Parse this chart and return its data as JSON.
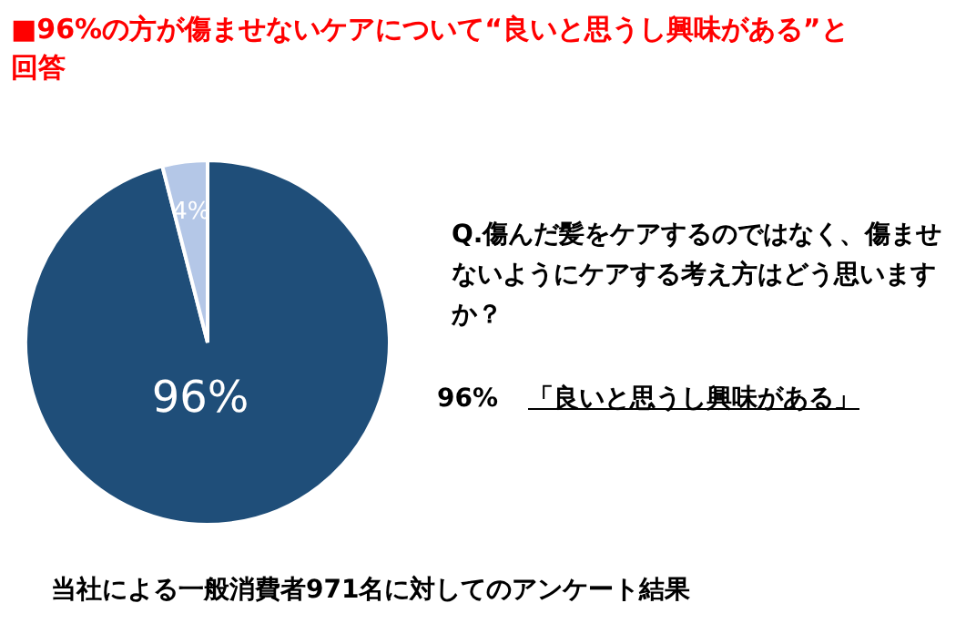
{
  "chart_data": {
    "type": "pie",
    "title": "■96%の方が傷ませないケアについて“良いと思うし興味がある”と回答",
    "categories": [
      null,
      null
    ],
    "values": [
      96,
      4
    ],
    "colors": [
      "#1f4e79",
      "#b4c7e7"
    ],
    "value_labels": [
      "96%",
      "4%"
    ],
    "annotations": [
      "Q.傷んだ髪をケアするのではなく、傷ませないようにケアする考え方はどう思いますか？",
      "96%",
      "「良いと思うし興味がある」",
      "当社による一般消費者971名に対してのアンケート結果"
    ]
  }
}
